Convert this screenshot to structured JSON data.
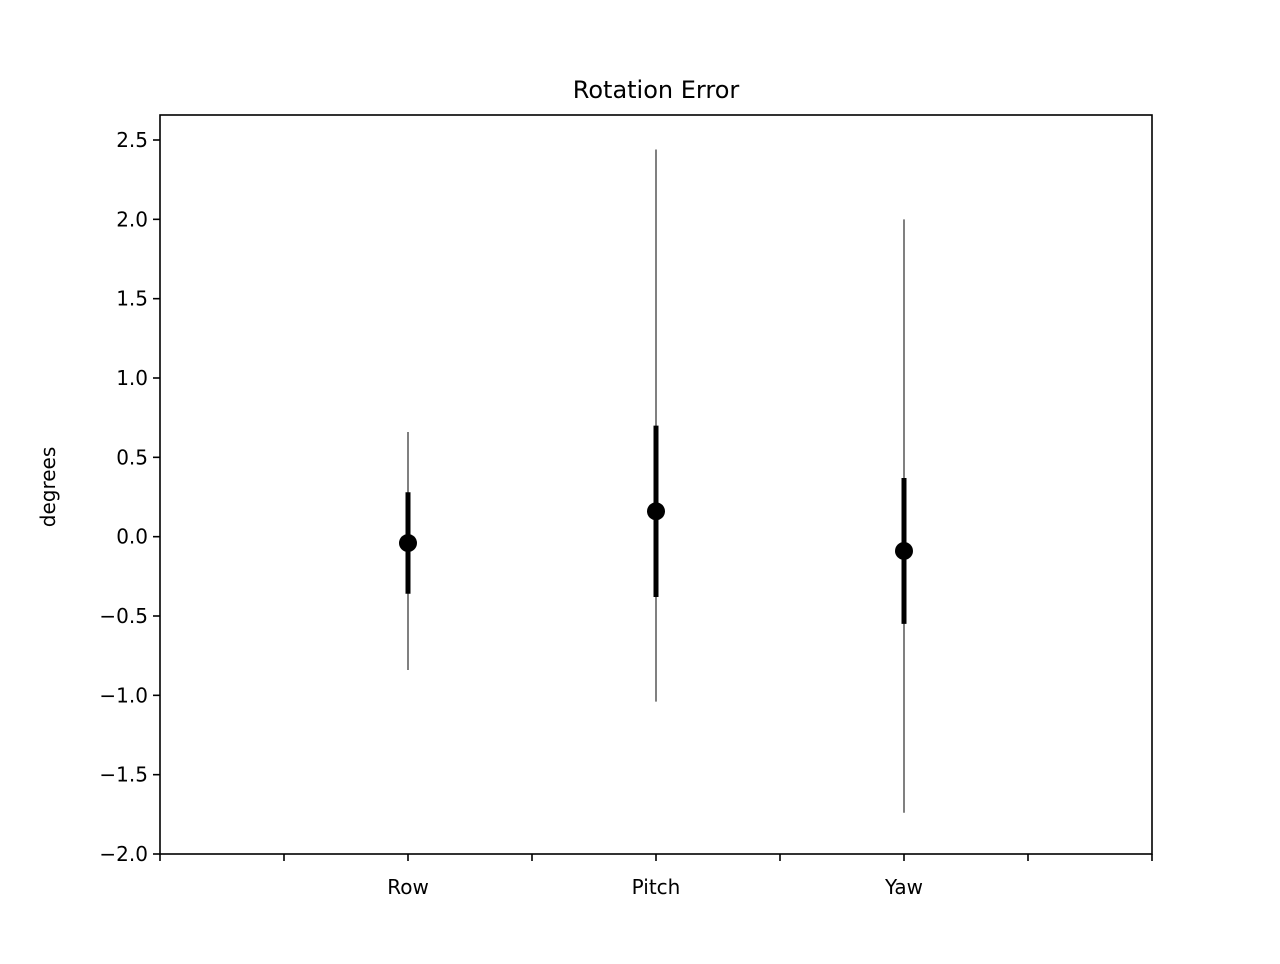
{
  "chart_data": {
    "type": "errorbar",
    "title": "Rotation Error",
    "xlabel": "",
    "ylabel": "degrees",
    "ylim": [
      -2.0,
      2.5
    ],
    "xlim": [
      -1,
      3
    ],
    "y_ticks": [
      -2.0,
      -1.5,
      -1.0,
      -0.5,
      0.0,
      0.5,
      1.0,
      1.5,
      2.0,
      2.5
    ],
    "y_tick_labels": [
      "−2.0",
      "−1.5",
      "−1.0",
      "−0.5",
      "0.0",
      "0.5",
      "1.0",
      "1.5",
      "2.0",
      "2.5"
    ],
    "x_ticks": [
      -1,
      -0.5,
      0,
      0.5,
      1,
      1.5,
      2,
      2.5,
      3
    ],
    "categories": [
      "Row",
      "Pitch",
      "Yaw"
    ],
    "points": [
      {
        "x": 0,
        "mean": -0.04,
        "inner_low": -0.36,
        "inner_high": 0.28,
        "outer_low": -0.84,
        "outer_high": 0.66
      },
      {
        "x": 1,
        "mean": 0.16,
        "inner_low": -0.38,
        "inner_high": 0.7,
        "outer_low": -1.04,
        "outer_high": 2.44
      },
      {
        "x": 2,
        "mean": -0.09,
        "inner_low": -0.55,
        "inner_high": 0.37,
        "outer_low": -1.74,
        "outer_high": 2.0
      }
    ],
    "colors": {
      "marker": "#000000",
      "inner_bar": "#000000",
      "outer_bar": "#808080",
      "axes": "#000000"
    },
    "grid": false
  }
}
